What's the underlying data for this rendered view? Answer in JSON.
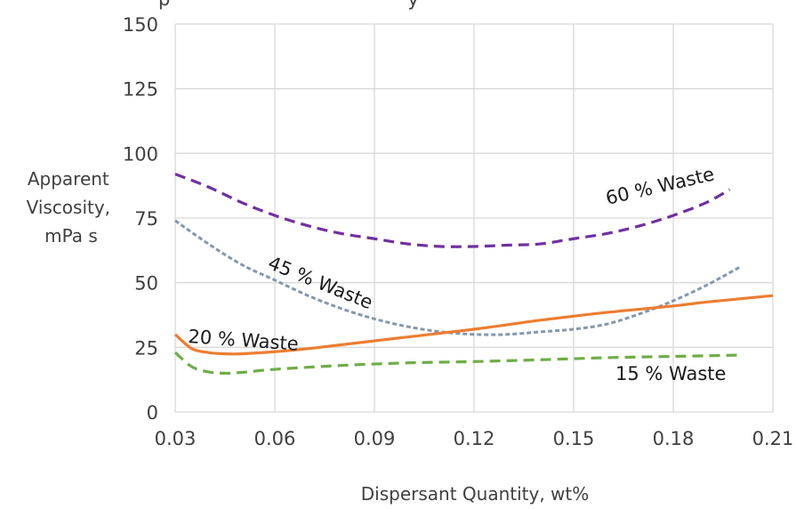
{
  "chart_data": {
    "type": "line",
    "title": "",
    "title_partial": "p                                        y",
    "xlabel": "Dispersant Quantity, wt%",
    "ylabel": [
      "Apparent",
      "Viscosity,",
      "mPa s"
    ],
    "xlim": [
      0.03,
      0.21
    ],
    "ylim": [
      0,
      150
    ],
    "x_ticks": [
      0.03,
      0.06,
      0.09,
      0.12,
      0.15,
      0.18,
      0.21
    ],
    "x_tick_labels": [
      "0.03",
      "0.06",
      "0.09",
      "0.12",
      "0.15",
      "0.18",
      "0.21"
    ],
    "y_ticks": [
      0,
      25,
      50,
      75,
      100,
      125,
      150
    ],
    "y_tick_labels": [
      "0",
      "25",
      "50",
      "75",
      "100",
      "125",
      "150"
    ],
    "grid": true,
    "legend": "none",
    "series": [
      {
        "name": "60 % Waste",
        "color": "#7030A0",
        "dash": "dashed",
        "x": [
          0.03,
          0.04,
          0.05,
          0.06,
          0.07,
          0.08,
          0.09,
          0.1,
          0.11,
          0.12,
          0.13,
          0.14,
          0.15,
          0.16,
          0.17,
          0.18,
          0.19,
          0.197
        ],
        "y": [
          92,
          87,
          81,
          76,
          72,
          69,
          67,
          65,
          64,
          64,
          64.5,
          65,
          67,
          69,
          72,
          76,
          81,
          86
        ]
      },
      {
        "name": "45 % Waste",
        "color": "#8497B0",
        "dash": "dotted",
        "x": [
          0.03,
          0.04,
          0.05,
          0.06,
          0.07,
          0.08,
          0.09,
          0.1,
          0.11,
          0.12,
          0.13,
          0.14,
          0.15,
          0.16,
          0.17,
          0.18,
          0.19,
          0.2
        ],
        "y": [
          74,
          65,
          57,
          51,
          45,
          40,
          36,
          33,
          31,
          30,
          30,
          31,
          32,
          34,
          38,
          43,
          49,
          56
        ]
      },
      {
        "name": "20 % Waste",
        "color": "#ED7D31",
        "dash": "solid",
        "x": [
          0.03,
          0.035,
          0.04,
          0.045,
          0.05,
          0.06,
          0.07,
          0.08,
          0.09,
          0.1,
          0.12,
          0.14,
          0.16,
          0.18,
          0.19,
          0.21
        ],
        "y": [
          30,
          24.5,
          23,
          22.5,
          22.5,
          23.3,
          24.5,
          26,
          27.5,
          29,
          32,
          35.5,
          38.5,
          41,
          42.5,
          45
        ]
      },
      {
        "name": "15 % Waste",
        "color": "#70AD47",
        "dash": "dashed",
        "x": [
          0.03,
          0.035,
          0.04,
          0.045,
          0.05,
          0.06,
          0.08,
          0.1,
          0.12,
          0.14,
          0.16,
          0.18,
          0.2
        ],
        "y": [
          23,
          17.5,
          15.5,
          15,
          15.3,
          16.5,
          18,
          19,
          19.5,
          20.2,
          21,
          21.5,
          22
        ]
      }
    ],
    "annotations": [
      {
        "series": "60 % Waste",
        "text": "60 % Waste"
      },
      {
        "series": "45 % Waste",
        "text": "45 % Waste"
      },
      {
        "series": "20 % Waste",
        "text": "20 % Waste"
      },
      {
        "series": "15 % Waste",
        "text": "15 % Waste"
      }
    ]
  }
}
